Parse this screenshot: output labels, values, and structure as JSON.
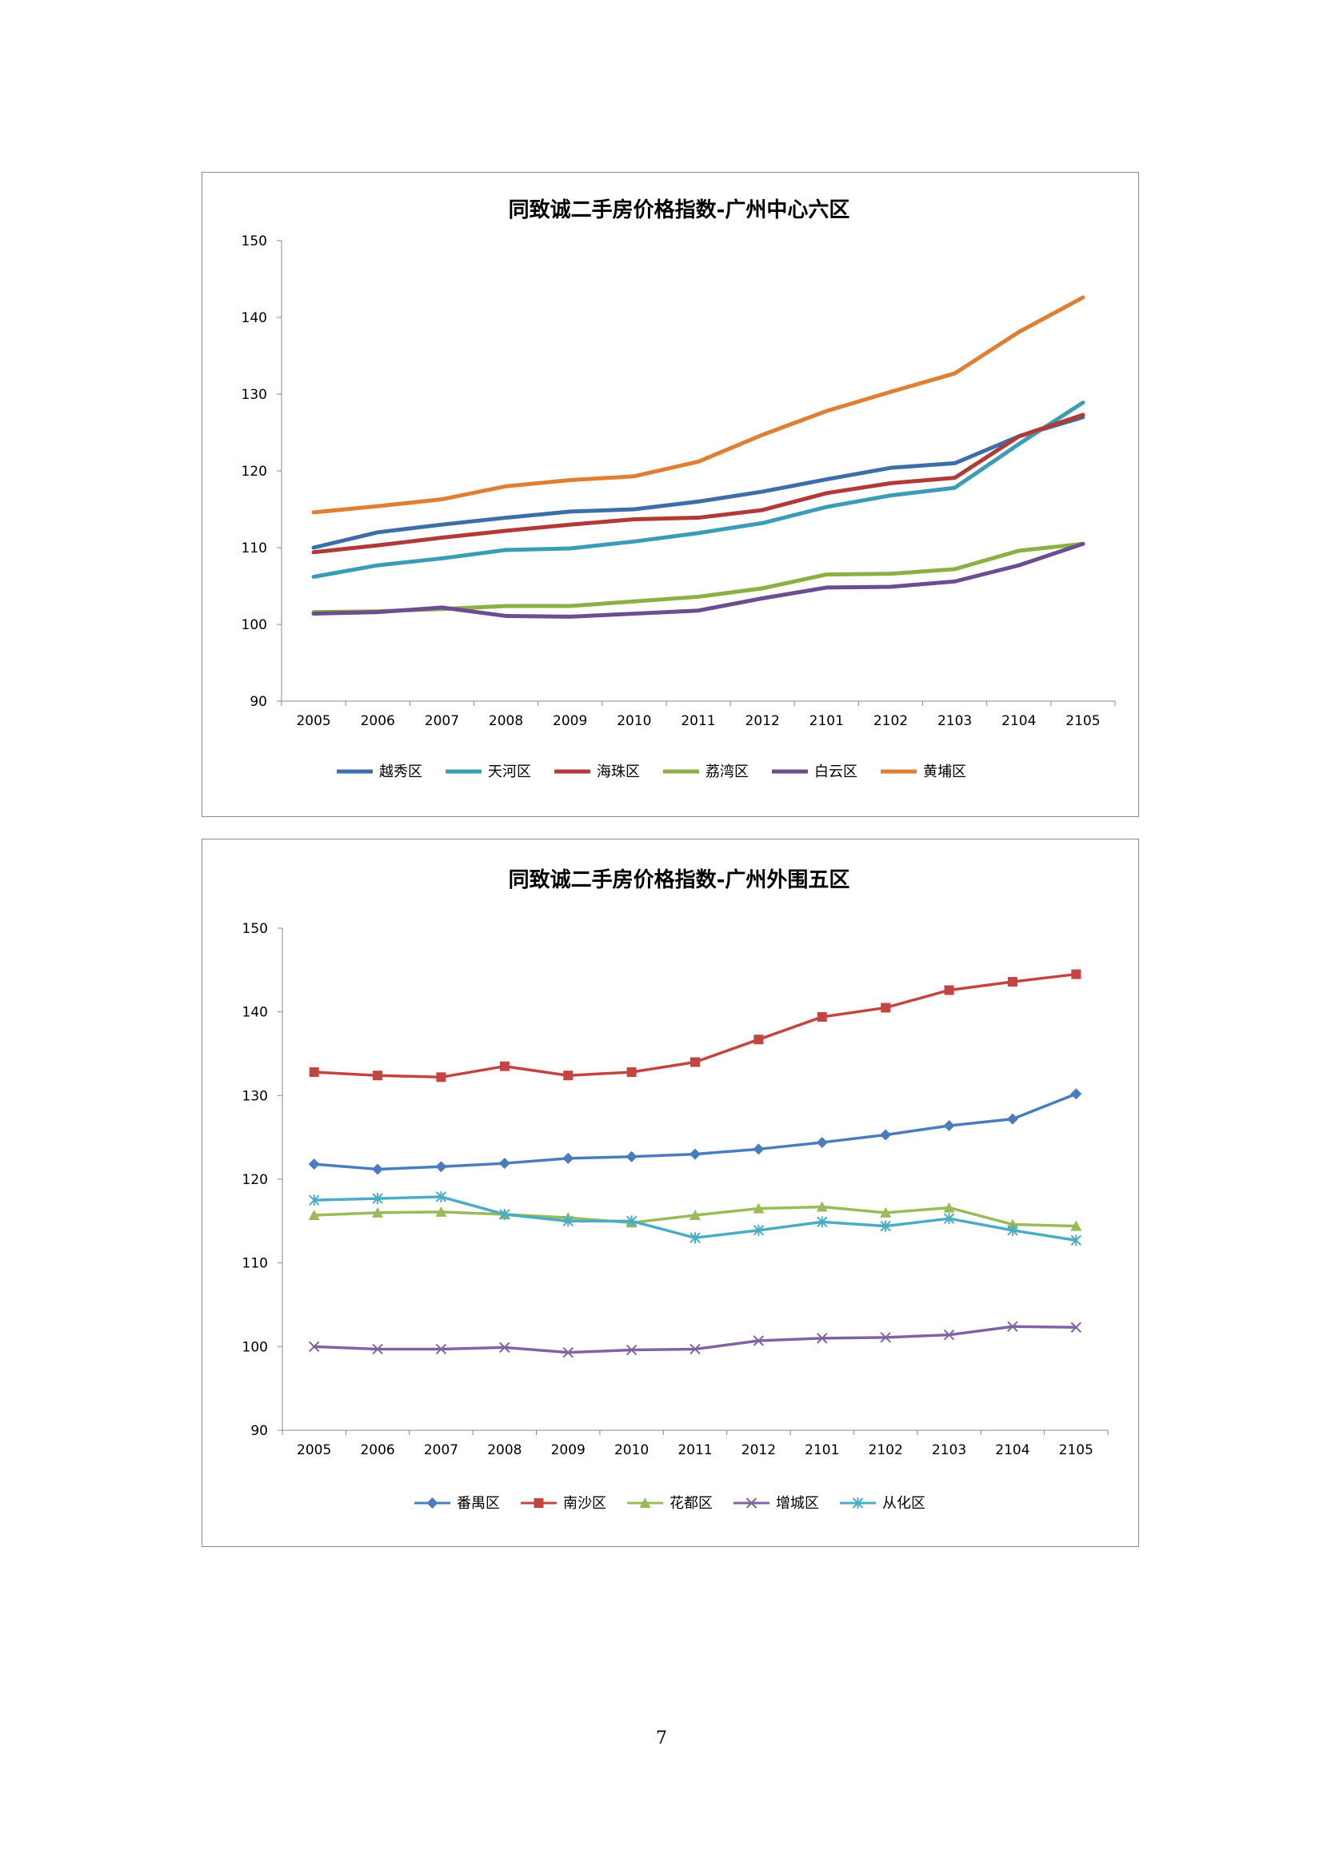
{
  "page": {
    "number": "7"
  },
  "chart_data": [
    {
      "type": "line",
      "title": "同致诚二手房价格指数-广州中心六区",
      "xlabel": "",
      "ylabel": "",
      "categories": [
        "2005",
        "2006",
        "2007",
        "2008",
        "2009",
        "2010",
        "2011",
        "2012",
        "2101",
        "2102",
        "2103",
        "2104",
        "2105"
      ],
      "ylim": [
        90,
        150
      ],
      "yticks": [
        90,
        100,
        110,
        120,
        130,
        140,
        150
      ],
      "grid": false,
      "legend": "bottom",
      "markers": false,
      "series": [
        {
          "name": "越秀区",
          "color": "#3c6ea8",
          "marker": "none",
          "values": [
            110.0,
            112.0,
            113.0,
            113.9,
            114.7,
            115.0,
            116.0,
            117.3,
            118.9,
            120.4,
            121.0,
            124.5,
            127.0
          ]
        },
        {
          "name": "天河区",
          "color": "#3b9cb6",
          "marker": "none",
          "values": [
            106.2,
            107.7,
            108.6,
            109.7,
            109.9,
            110.8,
            111.9,
            113.2,
            115.3,
            116.8,
            117.8,
            123.5,
            128.9
          ]
        },
        {
          "name": "海珠区",
          "color": "#b03a36",
          "marker": "none",
          "values": [
            109.4,
            110.3,
            111.3,
            112.2,
            113.0,
            113.7,
            113.9,
            114.9,
            117.1,
            118.4,
            119.1,
            124.5,
            127.3
          ]
        },
        {
          "name": "荔湾区",
          "color": "#8cb044",
          "marker": "none",
          "values": [
            101.6,
            101.7,
            102.0,
            102.4,
            102.4,
            103.0,
            103.6,
            104.7,
            106.5,
            106.6,
            107.2,
            109.6,
            110.5
          ]
        },
        {
          "name": "白云区",
          "color": "#6c4e90",
          "marker": "none",
          "values": [
            101.4,
            101.6,
            102.2,
            101.1,
            101.0,
            101.4,
            101.8,
            103.4,
            104.8,
            104.9,
            105.6,
            107.7,
            110.5
          ]
        },
        {
          "name": "黄埔区",
          "color": "#e07f31",
          "marker": "none",
          "values": [
            114.6,
            115.4,
            116.3,
            118.0,
            118.8,
            119.3,
            121.2,
            124.7,
            127.8,
            130.3,
            132.7,
            138.1,
            142.6
          ]
        }
      ]
    },
    {
      "type": "line",
      "title": "同致诚二手房价格指数-广州外围五区",
      "xlabel": "",
      "ylabel": "",
      "categories": [
        "2005",
        "2006",
        "2007",
        "2008",
        "2009",
        "2010",
        "2011",
        "2012",
        "2101",
        "2102",
        "2103",
        "2104",
        "2105"
      ],
      "ylim": [
        90,
        150
      ],
      "yticks": [
        90,
        100,
        110,
        120,
        130,
        140,
        150
      ],
      "grid": false,
      "legend": "bottom",
      "markers": true,
      "series": [
        {
          "name": "番禺区",
          "color": "#4a7dc0",
          "marker": "diamond",
          "values": [
            121.8,
            121.2,
            121.5,
            121.9,
            122.5,
            122.7,
            123.0,
            123.6,
            124.4,
            125.3,
            126.4,
            127.2,
            130.2
          ]
        },
        {
          "name": "南沙区",
          "color": "#c4453f",
          "marker": "square",
          "values": [
            132.8,
            132.4,
            132.2,
            133.5,
            132.4,
            132.8,
            134.0,
            136.7,
            139.4,
            140.5,
            142.6,
            143.6,
            144.5
          ]
        },
        {
          "name": "花都区",
          "color": "#9bbb59",
          "marker": "triangle",
          "values": [
            115.7,
            116.0,
            116.1,
            115.8,
            115.4,
            114.8,
            115.7,
            116.5,
            116.7,
            116.0,
            116.6,
            114.6,
            114.4
          ]
        },
        {
          "name": "增城区",
          "color": "#8064a2",
          "marker": "x",
          "values": [
            100.0,
            99.7,
            99.7,
            99.9,
            99.3,
            99.6,
            99.7,
            100.7,
            101.0,
            101.1,
            101.4,
            102.4,
            102.3
          ]
        },
        {
          "name": "从化区",
          "color": "#4bacc6",
          "marker": "star",
          "values": [
            117.5,
            117.7,
            117.9,
            115.8,
            115.0,
            115.0,
            113.0,
            113.9,
            114.9,
            114.4,
            115.3,
            113.9,
            112.7
          ]
        }
      ]
    }
  ]
}
